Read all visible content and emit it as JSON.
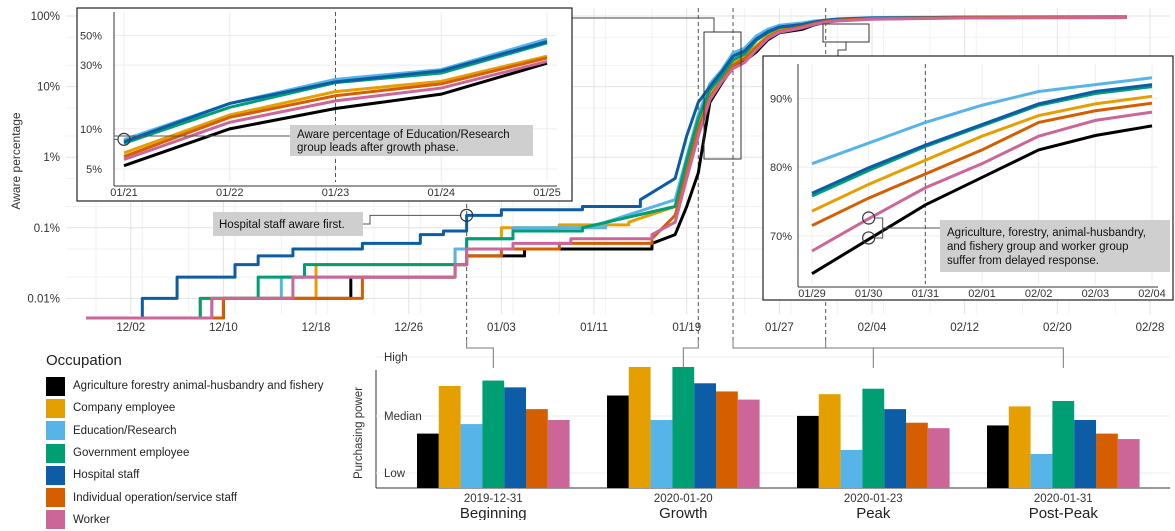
{
  "chart_data": [
    {
      "type": "line",
      "ylabel": "Aware percentage",
      "yscale": "log",
      "ylim": [
        0.006,
        130
      ],
      "y_ticks": [
        "0.01%",
        "0.1%",
        "1%",
        "10%",
        "100%"
      ],
      "x_ticks": [
        "12/02",
        "12/10",
        "12/18",
        "12/26",
        "01/03",
        "01/11",
        "01/19",
        "01/27",
        "02/04",
        "02/12",
        "02/20",
        "02/28"
      ],
      "date_range": [
        "2019-11-29",
        "2020-02-28"
      ],
      "grid": true,
      "phase_markers": [
        "2019-12-31",
        "2020-01-20",
        "2020-01-23",
        "2020-01-31"
      ],
      "series": [
        {
          "name": "Agriculture forestry animal-husbandry and fishery",
          "color": "#000000",
          "points": [
            [
              "2019-12-10",
              0.01
            ],
            [
              "2019-12-21",
              0.02
            ],
            [
              "2019-12-30",
              0.03
            ],
            [
              "2019-12-31",
              0.04
            ],
            [
              "2020-01-05",
              0.05
            ],
            [
              "2020-01-16",
              0.06
            ],
            [
              "2020-01-18",
              0.08
            ],
            [
              "2020-01-19",
              0.2
            ],
            [
              "2020-01-20",
              0.6
            ],
            [
              "2020-01-21",
              6
            ],
            [
              "2020-01-22",
              11
            ],
            [
              "2020-01-23",
              19
            ],
            [
              "2020-01-24",
              23
            ],
            [
              "2020-01-25",
              31
            ],
            [
              "2020-01-26",
              46
            ],
            [
              "2020-01-27",
              58
            ],
            [
              "2020-01-29",
              65
            ],
            [
              "2020-01-30",
              75
            ],
            [
              "2020-01-31",
              82
            ],
            [
              "2020-02-01",
              86
            ],
            [
              "2020-02-04",
              91
            ],
            [
              "2020-02-12",
              95
            ],
            [
              "2020-02-26",
              96
            ]
          ]
        },
        {
          "name": "Company employee",
          "color": "#E69F00",
          "points": [
            [
              "2019-12-08",
              0.01
            ],
            [
              "2019-12-18",
              0.03
            ],
            [
              "2019-12-30",
              0.05
            ],
            [
              "2019-12-31",
              0.07
            ],
            [
              "2020-01-03",
              0.1
            ],
            [
              "2020-01-08",
              0.11
            ],
            [
              "2020-01-14",
              0.12
            ],
            [
              "2020-01-18",
              0.2
            ],
            [
              "2020-01-19",
              0.8
            ],
            [
              "2020-01-20",
              3
            ],
            [
              "2020-01-21",
              8
            ],
            [
              "2020-01-22",
              13
            ],
            [
              "2020-01-23",
              22
            ],
            [
              "2020-01-24",
              27
            ],
            [
              "2020-01-25",
              38
            ],
            [
              "2020-01-26",
              52
            ],
            [
              "2020-01-27",
              64
            ],
            [
              "2020-01-29",
              74
            ],
            [
              "2020-01-30",
              81
            ],
            [
              "2020-01-31",
              86
            ],
            [
              "2020-02-01",
              89
            ],
            [
              "2020-02-04",
              93
            ],
            [
              "2020-02-12",
              96
            ],
            [
              "2020-02-26",
              97
            ]
          ]
        },
        {
          "name": "Education/Research",
          "color": "#56B4E9",
          "points": [
            [
              "2019-12-09",
              0.01
            ],
            [
              "2019-12-15",
              0.02
            ],
            [
              "2019-12-30",
              0.05
            ],
            [
              "2019-12-31",
              0.07
            ],
            [
              "2020-01-04",
              0.1
            ],
            [
              "2020-01-12",
              0.12
            ],
            [
              "2020-01-18",
              0.25
            ],
            [
              "2020-01-19",
              1
            ],
            [
              "2020-01-20",
              4
            ],
            [
              "2020-01-21",
              11
            ],
            [
              "2020-01-22",
              17
            ],
            [
              "2020-01-23",
              30
            ],
            [
              "2020-01-24",
              35
            ],
            [
              "2020-01-25",
              52
            ],
            [
              "2020-01-26",
              65
            ],
            [
              "2020-01-27",
              74
            ],
            [
              "2020-01-29",
              80
            ],
            [
              "2020-01-30",
              85
            ],
            [
              "2020-01-31",
              88
            ],
            [
              "2020-02-01",
              91
            ],
            [
              "2020-02-04",
              95
            ],
            [
              "2020-02-12",
              97
            ],
            [
              "2020-02-26",
              98
            ]
          ]
        },
        {
          "name": "Government employee",
          "color": "#009E73",
          "points": [
            [
              "2019-12-08",
              0.01
            ],
            [
              "2019-12-13",
              0.02
            ],
            [
              "2019-12-17",
              0.03
            ],
            [
              "2019-12-31",
              0.07
            ],
            [
              "2020-01-04",
              0.09
            ],
            [
              "2020-01-10",
              0.1
            ],
            [
              "2020-01-18",
              0.2
            ],
            [
              "2020-01-19",
              0.9
            ],
            [
              "2020-01-20",
              3.5
            ],
            [
              "2020-01-21",
              9
            ],
            [
              "2020-01-22",
              14
            ],
            [
              "2020-01-23",
              24
            ],
            [
              "2020-01-24",
              29
            ],
            [
              "2020-01-25",
              45
            ],
            [
              "2020-01-26",
              58
            ],
            [
              "2020-01-27",
              69
            ],
            [
              "2020-01-29",
              76
            ],
            [
              "2020-01-30",
              82
            ],
            [
              "2020-01-31",
              87
            ],
            [
              "2020-02-01",
              90
            ],
            [
              "2020-02-04",
              94
            ],
            [
              "2020-02-12",
              96
            ],
            [
              "2020-02-26",
              97
            ]
          ]
        },
        {
          "name": "Hospital staff",
          "color": "#0C5DA5",
          "points": [
            [
              "2019-12-03",
              0.01
            ],
            [
              "2019-12-06",
              0.02
            ],
            [
              "2019-12-11",
              0.03
            ],
            [
              "2019-12-13",
              0.04
            ],
            [
              "2019-12-16",
              0.05
            ],
            [
              "2019-12-22",
              0.06
            ],
            [
              "2019-12-27",
              0.08
            ],
            [
              "2019-12-29",
              0.09
            ],
            [
              "2019-12-31",
              0.15
            ],
            [
              "2020-01-03",
              0.18
            ],
            [
              "2020-01-10",
              0.2
            ],
            [
              "2020-01-15",
              0.25
            ],
            [
              "2020-01-18",
              0.5
            ],
            [
              "2020-01-19",
              2
            ],
            [
              "2020-01-20",
              6
            ],
            [
              "2020-01-21",
              10
            ],
            [
              "2020-01-22",
              16
            ],
            [
              "2020-01-23",
              27
            ],
            [
              "2020-01-24",
              32
            ],
            [
              "2020-01-25",
              47
            ],
            [
              "2020-01-26",
              60
            ],
            [
              "2020-01-27",
              70
            ],
            [
              "2020-01-29",
              76
            ],
            [
              "2020-01-30",
              82
            ],
            [
              "2020-01-31",
              87
            ],
            [
              "2020-02-01",
              90
            ],
            [
              "2020-02-04",
              94
            ],
            [
              "2020-02-12",
              96
            ],
            [
              "2020-02-26",
              97
            ]
          ]
        },
        {
          "name": "Individual operation/service staff",
          "color": "#D55E00",
          "points": [
            [
              "2019-12-10",
              0.01
            ],
            [
              "2019-12-22",
              0.02
            ],
            [
              "2019-12-30",
              0.03
            ],
            [
              "2019-12-31",
              0.04
            ],
            [
              "2020-01-03",
              0.05
            ],
            [
              "2020-01-08",
              0.06
            ],
            [
              "2020-01-16",
              0.07
            ],
            [
              "2020-01-18",
              0.15
            ],
            [
              "2020-01-19",
              0.6
            ],
            [
              "2020-01-20",
              2.5
            ],
            [
              "2020-01-21",
              7
            ],
            [
              "2020-01-22",
              12
            ],
            [
              "2020-01-23",
              20
            ],
            [
              "2020-01-24",
              25
            ],
            [
              "2020-01-25",
              36
            ],
            [
              "2020-01-26",
              50
            ],
            [
              "2020-01-27",
              61
            ],
            [
              "2020-01-29",
              71
            ],
            [
              "2020-01-30",
              78
            ],
            [
              "2020-01-31",
              84
            ],
            [
              "2020-02-01",
              87
            ],
            [
              "2020-02-04",
              92
            ],
            [
              "2020-02-12",
              95
            ],
            [
              "2020-02-26",
              96
            ]
          ]
        },
        {
          "name": "Worker",
          "color": "#CC6699",
          "points": [
            [
              "2019-12-09",
              0.01
            ],
            [
              "2019-12-16",
              0.02
            ],
            [
              "2019-12-30",
              0.03
            ],
            [
              "2019-12-31",
              0.05
            ],
            [
              "2020-01-04",
              0.06
            ],
            [
              "2020-01-09",
              0.07
            ],
            [
              "2020-01-16",
              0.08
            ],
            [
              "2020-01-18",
              0.12
            ],
            [
              "2020-01-19",
              0.5
            ],
            [
              "2020-01-20",
              2
            ],
            [
              "2020-01-21",
              6.5
            ],
            [
              "2020-01-22",
              11.5
            ],
            [
              "2020-01-23",
              18
            ],
            [
              "2020-01-24",
              22
            ],
            [
              "2020-01-25",
              33
            ],
            [
              "2020-01-26",
              48
            ],
            [
              "2020-01-27",
              59
            ],
            [
              "2020-01-29",
              68
            ],
            [
              "2020-01-30",
              76
            ],
            [
              "2020-01-31",
              82
            ],
            [
              "2020-02-01",
              85
            ],
            [
              "2020-02-04",
              90
            ],
            [
              "2020-02-12",
              94
            ],
            [
              "2020-02-26",
              95
            ]
          ]
        }
      ]
    },
    {
      "type": "line",
      "inset": "01/21 - 01/25",
      "yscale": "log",
      "ylim": [
        4,
        75
      ],
      "y_ticks": [
        5,
        10,
        30,
        50
      ],
      "y_tick_labels": [
        "5%",
        "10%",
        "30%",
        "50%"
      ],
      "x_ticks": [
        "01/21",
        "01/22",
        "01/23",
        "01/24",
        "01/25"
      ],
      "annotation": "Aware percentage of Education/Research group leads after growth phase."
    },
    {
      "type": "line",
      "inset": "01/29 - 02/04",
      "ylim": [
        63,
        95
      ],
      "y_ticks": [
        70,
        80,
        90
      ],
      "y_tick_labels": [
        "70%",
        "80%",
        "90%"
      ],
      "x_ticks": [
        "01/29",
        "01/30",
        "01/31",
        "02/01",
        "02/02",
        "02/03",
        "02/04"
      ],
      "annotation": "Agriculture, forestry, animal-husbandry, and fishery group and worker group suffer from delayed response."
    },
    {
      "type": "bar",
      "ylabel": "Purchasing power",
      "y_ticks": [
        "Low",
        "Median",
        "High"
      ],
      "groups": [
        {
          "date": "2019-12-31",
          "phase": "Beginning",
          "values": [
            0.4,
            0.75,
            0.47,
            0.79,
            0.74,
            0.58,
            0.5
          ]
        },
        {
          "date": "2020-01-20",
          "phase": "Growth",
          "values": [
            0.68,
            0.89,
            0.5,
            0.89,
            0.77,
            0.71,
            0.65
          ]
        },
        {
          "date": "2020-01-23",
          "phase": "Peak",
          "values": [
            0.53,
            0.69,
            0.28,
            0.73,
            0.58,
            0.48,
            0.44
          ]
        },
        {
          "date": "2020-01-31",
          "phase": "Post-Peak",
          "values": [
            0.46,
            0.6,
            0.25,
            0.64,
            0.5,
            0.4,
            0.36
          ]
        }
      ]
    }
  ],
  "labels": {
    "ylabel": "Aware percentage",
    "bar_ylabel": "Purchasing power",
    "legend_title": "Occupation",
    "hospital_note": "Hospital staff aware first.",
    "inset1_note_1": "Aware percentage of Education/Research",
    "inset1_note_2": "group leads after growth phase.",
    "inset2_note_1": "Agriculture, forestry, animal-husbandry,",
    "inset2_note_2": "and fishery group and worker group",
    "inset2_note_3": "suffer from delayed response."
  },
  "legend": [
    {
      "label": "Agriculture forestry animal-husbandry and fishery",
      "color": "#000000"
    },
    {
      "label": "Company employee",
      "color": "#E69F00"
    },
    {
      "label": "Education/Research",
      "color": "#56B4E9"
    },
    {
      "label": "Government employee",
      "color": "#009E73"
    },
    {
      "label": "Hospital staff",
      "color": "#0C5DA5"
    },
    {
      "label": "Individual operation/service staff",
      "color": "#D55E00"
    },
    {
      "label": "Worker",
      "color": "#CC6699"
    }
  ],
  "inset1_series": [
    [
      5.3,
      10,
      14.2,
      18.2,
      31
    ],
    [
      6.6,
      12.7,
      19,
      22.7,
      35
    ],
    [
      8.3,
      15.5,
      23.5,
      27.8,
      47
    ],
    [
      7.8,
      14.5,
      22.2,
      26.2,
      44
    ],
    [
      8.0,
      15.5,
      22.5,
      27.2,
      45
    ],
    [
      6.2,
      12.2,
      17.7,
      21.7,
      34
    ],
    [
      5.9,
      11.2,
      16.2,
      20.2,
      32
    ]
  ],
  "inset2_series": [
    [
      64.5,
      69.5,
      74.5,
      78.5,
      82.5,
      84.6,
      86.0
    ],
    [
      73.6,
      77.5,
      81.0,
      84.5,
      87.5,
      89.2,
      90.3
    ],
    [
      80.5,
      83.5,
      86.5,
      89.0,
      91.0,
      92.0,
      93.0
    ],
    [
      75.8,
      79.5,
      83.0,
      86.0,
      89.0,
      90.7,
      91.7
    ],
    [
      76.2,
      79.9,
      83.2,
      86.2,
      89.2,
      91.0,
      92.0
    ],
    [
      71.5,
      75.5,
      79.0,
      82.5,
      86.5,
      88.2,
      89.3
    ],
    [
      67.8,
      72.5,
      77.0,
      80.5,
      84.5,
      86.8,
      88.0
    ]
  ]
}
